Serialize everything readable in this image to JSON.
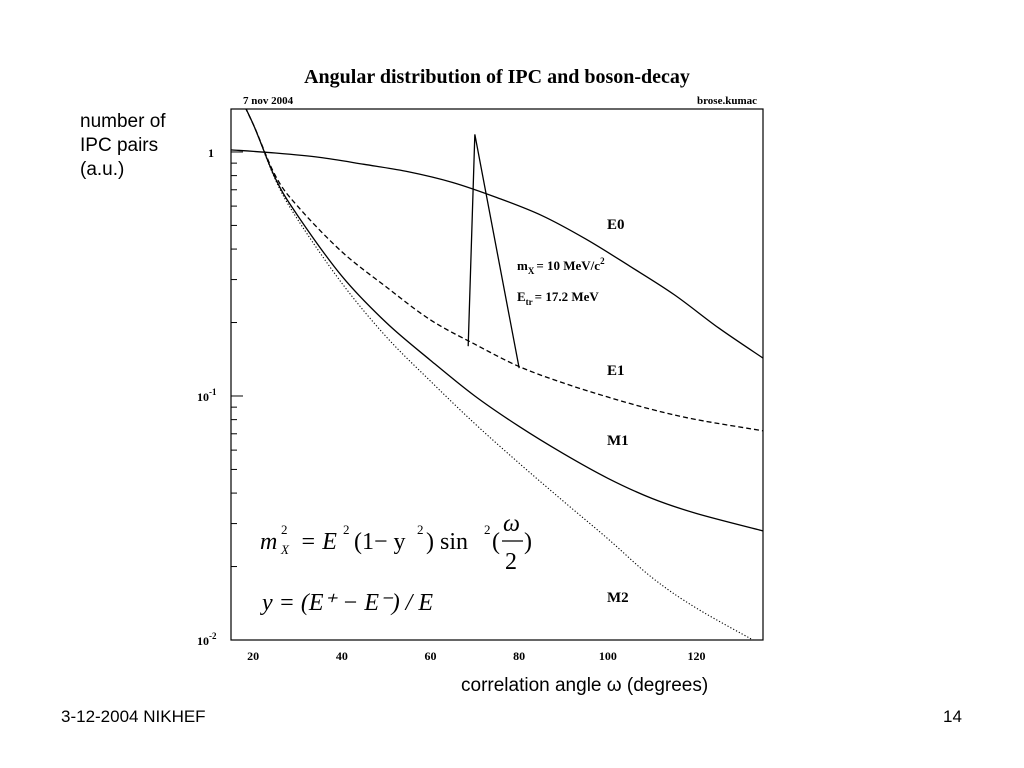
{
  "chart_data": {
    "type": "line",
    "title": "Angular distribution of IPC and boson-decay",
    "date_label": "7 nov 2004",
    "macro_label": "brose.kumac",
    "ylabel_lines": [
      "number of",
      "IPC pairs",
      "(a.u.)"
    ],
    "xlabel": "correlation angle ω (degrees)",
    "y_scale": "log",
    "xlim": [
      15,
      135
    ],
    "ylim": [
      0.01,
      1.5
    ],
    "x_ticks": [
      "20",
      "40",
      "60",
      "80",
      "100",
      "120"
    ],
    "y_ticks": [
      {
        "value": 1,
        "label": "1"
      },
      {
        "value": 0.1,
        "label": "10",
        "exp": "-1"
      },
      {
        "value": 0.01,
        "label": "10",
        "exp": "-2"
      }
    ],
    "series": [
      {
        "name": "E0",
        "style": "solid",
        "x": [
          15,
          25,
          35,
          45,
          55,
          65,
          75,
          85,
          95,
          105,
          115,
          125,
          135
        ],
        "y": [
          1.02,
          0.99,
          0.95,
          0.89,
          0.83,
          0.75,
          0.65,
          0.55,
          0.44,
          0.34,
          0.26,
          0.19,
          0.143
        ]
      },
      {
        "name": "E1",
        "style": "dashed",
        "x": [
          15,
          20,
          25,
          30,
          40,
          50,
          60,
          70,
          80,
          90,
          100,
          110,
          120,
          135
        ],
        "y": [
          2.0,
          1.3,
          0.8,
          0.6,
          0.39,
          0.28,
          0.205,
          0.163,
          0.132,
          0.113,
          0.099,
          0.088,
          0.08,
          0.072
        ]
      },
      {
        "name": "M1",
        "style": "solid",
        "x": [
          15,
          20,
          25,
          30,
          40,
          50,
          60,
          70,
          80,
          90,
          100,
          110,
          120,
          135
        ],
        "y": [
          2.0,
          1.3,
          0.78,
          0.55,
          0.31,
          0.2,
          0.14,
          0.1,
          0.075,
          0.058,
          0.046,
          0.038,
          0.033,
          0.028
        ]
      },
      {
        "name": "M2",
        "style": "dotted",
        "x": [
          15,
          20,
          25,
          30,
          40,
          50,
          60,
          70,
          80,
          90,
          100,
          110,
          120,
          135
        ],
        "y": [
          2.0,
          1.3,
          0.77,
          0.53,
          0.29,
          0.175,
          0.115,
          0.077,
          0.053,
          0.037,
          0.026,
          0.018,
          0.0135,
          0.0095
        ]
      },
      {
        "name": "",
        "style": "solid",
        "x": [
          68.5,
          70.0,
          80.0
        ],
        "y": [
          0.16,
          1.18,
          0.13
        ]
      }
    ],
    "curve_labels": [
      "E0",
      "E1",
      "M1",
      "M2"
    ],
    "annotations": {
      "mass": "m",
      "mass_sub": "X",
      "mass_val": "= 10 MeV/c",
      "mass_sup": "2",
      "etr": "E",
      "etr_sub": "tr",
      "etr_val": "= 17.2 MeV"
    },
    "formulas": {
      "line1_lhs": "m",
      "line1_lhs_sup": "2",
      "line1_lhs_sub": "X",
      "line1_rhs_a": "= E",
      "line1_rhs_sup1": "2",
      "line1_rhs_b": "(1− y",
      "line1_rhs_sup2": "2",
      "line1_rhs_c": ") sin",
      "line1_rhs_sup3": "2",
      "line1_rhs_d": "(",
      "line1_frac_num": "ω",
      "line1_frac_den": "2",
      "line1_rhs_e": ")",
      "line2": "y = (E⁺ − E⁻) / E"
    }
  },
  "footer": {
    "left": "3-12-2004 NIKHEF",
    "right": "14"
  }
}
